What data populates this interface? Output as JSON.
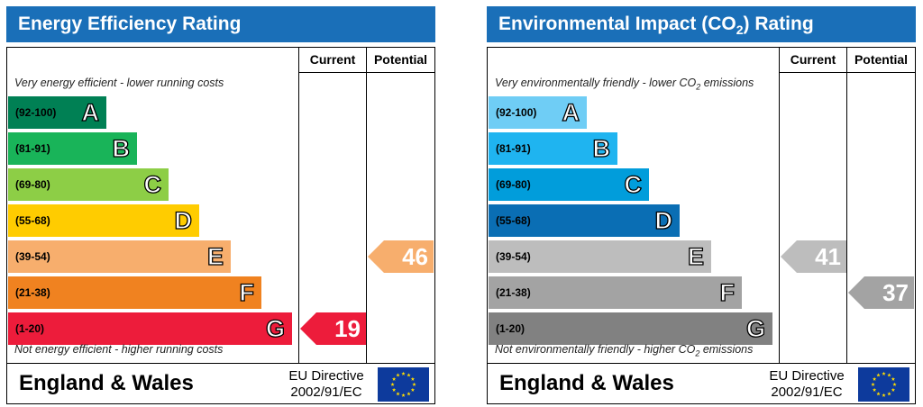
{
  "columns": {
    "current": "Current",
    "potential": "Potential"
  },
  "colors": {
    "header_blue": "#1a6fb8",
    "energy_bands": [
      "#008054",
      "#19b459",
      "#8dce46",
      "#ffcc00",
      "#f7ae6d",
      "#f08220",
      "#ed1c3b"
    ],
    "environmental_bands": [
      "#6fcdf5",
      "#1fb4f0",
      "#019ddb",
      "#0a6eb4",
      "#bdbdbd",
      "#a3a3a3",
      "#818181"
    ]
  },
  "panels": [
    {
      "title": "Energy Efficiency Rating",
      "top_note": "Very energy efficient - lower running costs",
      "bottom_note": "Not energy efficient - higher running costs",
      "footer": {
        "region": "England & Wales",
        "directive_line1": "EU Directive",
        "directive_line2": "2002/91/EC",
        "flag_icon": "eu-flag-icon"
      }
    },
    {
      "title": "Environmental Impact (CO",
      "title_sub": "2",
      "title_tail": ") Rating",
      "top_note": "Very environmentally friendly - lower CO",
      "top_note_sub": "2",
      "top_note_tail": " emissions",
      "bottom_note": "Not environmentally friendly - higher CO",
      "bottom_note_sub": "2",
      "bottom_note_tail": " emissions",
      "footer": {
        "region": "England & Wales",
        "directive_line1": "EU Directive",
        "directive_line2": "2002/91/EC",
        "flag_icon": "eu-flag-icon"
      }
    }
  ],
  "chart_data": [
    {
      "type": "bar",
      "title": "Energy Efficiency Rating",
      "categories": [
        "A",
        "B",
        "C",
        "D",
        "E",
        "F",
        "G"
      ],
      "ranges": [
        "(92-100)",
        "(81-91)",
        "(69-80)",
        "(55-68)",
        "(39-54)",
        "(21-38)",
        "(1-20)"
      ],
      "values": {
        "current": 19,
        "potential": 46
      },
      "current_band": "G",
      "potential_band": "E"
    },
    {
      "type": "bar",
      "title": "Environmental Impact (CO2) Rating",
      "categories": [
        "A",
        "B",
        "C",
        "D",
        "E",
        "F",
        "G"
      ],
      "ranges": [
        "(92-100)",
        "(81-91)",
        "(69-80)",
        "(55-68)",
        "(39-54)",
        "(21-38)",
        "(1-20)"
      ],
      "values": {
        "current": 41,
        "potential": 37
      },
      "current_band": "E",
      "potential_band": "F"
    }
  ]
}
